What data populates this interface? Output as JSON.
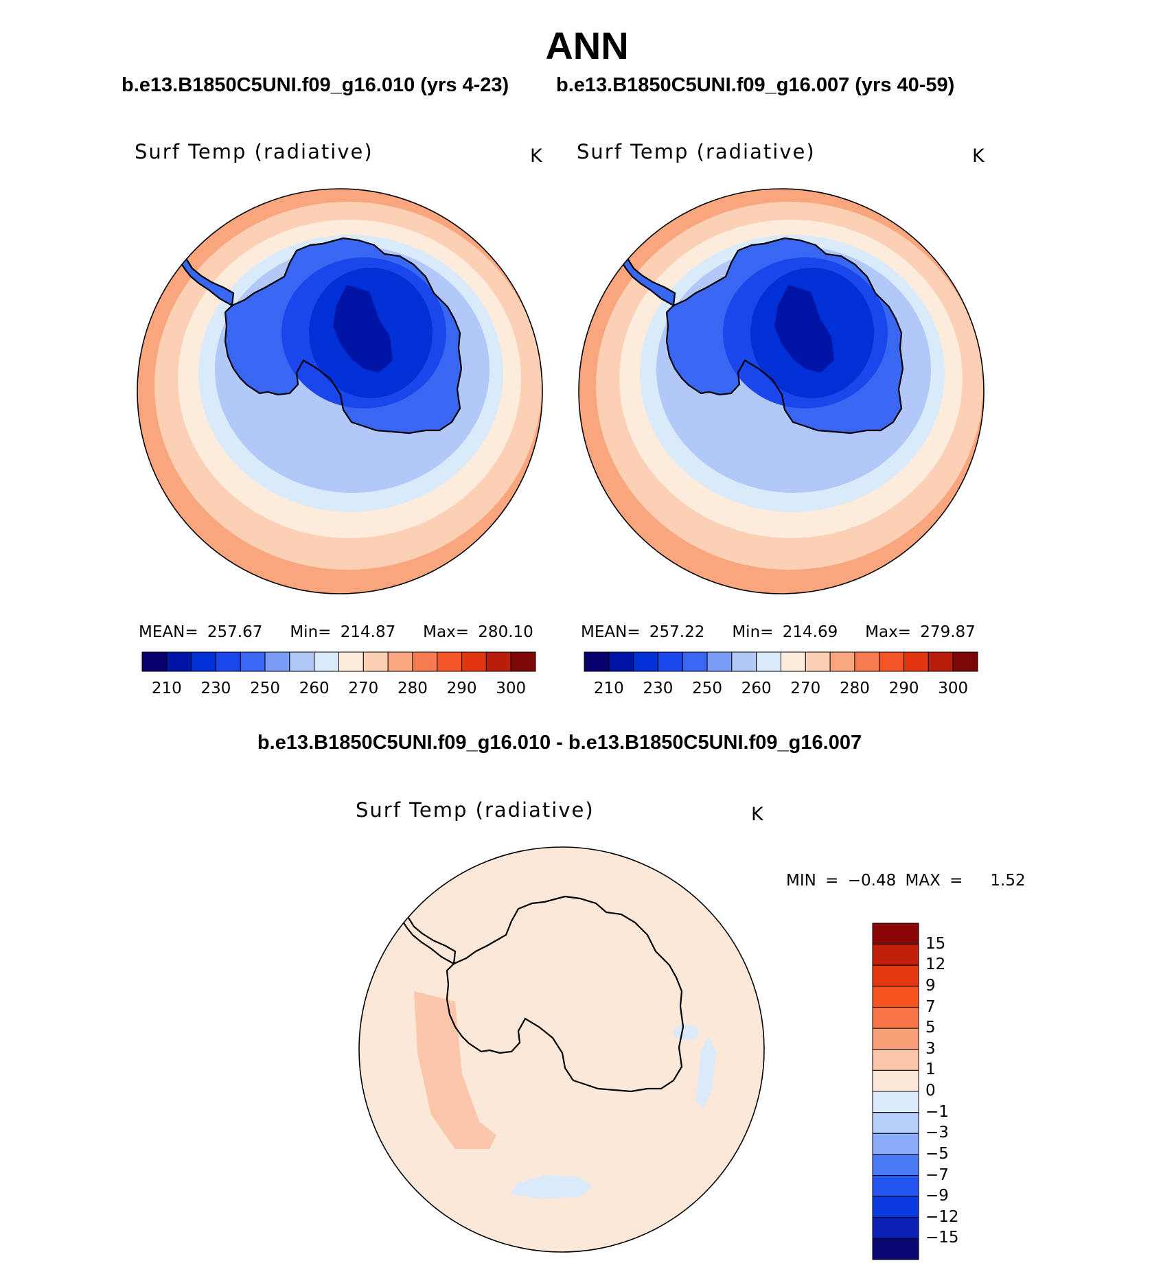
{
  "figure": {
    "title": "ANN",
    "case_left": "b.e13.B1850C5UNI.f09_g16.010 (yrs 4-23)",
    "case_right": "b.e13.B1850C5UNI.f09_g16.007 (yrs 40-59)",
    "diff_title": "b.e13.B1850C5UNI.f09_g16.010 - b.e13.B1850C5UNI.f09_g16.007"
  },
  "panels": {
    "left": {
      "variable": "Surf Temp (radiative)",
      "units": "K",
      "mean_label": "MEAN=",
      "mean": "257.67",
      "min_label": "Min=",
      "min": "214.87",
      "max_label": "Max=",
      "max": "280.10"
    },
    "right": {
      "variable": "Surf Temp (radiative)",
      "units": "K",
      "mean_label": "MEAN=",
      "mean": "257.22",
      "min_label": "Min=",
      "min": "214.69",
      "max_label": "Max=",
      "max": "279.87"
    },
    "diff": {
      "variable": "Surf Temp (radiative)",
      "units": "K",
      "min_label": "MIN =",
      "min": "−0.48",
      "max_label": "MAX =",
      "max": "1.52"
    }
  },
  "colorbar_main": {
    "colors": [
      "#08006b",
      "#0015a6",
      "#0030d6",
      "#1a47ec",
      "#3a67f2",
      "#7b9cf6",
      "#b2c8f8",
      "#d9ebfb",
      "#fdebdc",
      "#fcd0b4",
      "#f9a57d",
      "#f77b4f",
      "#f55527",
      "#e23512",
      "#b81d0c",
      "#7d0707"
    ],
    "tick_labels": [
      "210",
      "230",
      "250",
      "260",
      "270",
      "280",
      "290",
      "300"
    ]
  },
  "colorbar_diff": {
    "colors": [
      "#070672",
      "#0c1fb4",
      "#0b3be0",
      "#2356f0",
      "#4a7af3",
      "#8bacf8",
      "#b6cff9",
      "#dbeafb",
      "#fce8d9",
      "#fbc6a9",
      "#f8a078",
      "#f77546",
      "#f6531f",
      "#e3380f",
      "#c02009",
      "#8a0606"
    ],
    "tick_labels": [
      "−15",
      "−12",
      "−9",
      "−7",
      "−5",
      "−3",
      "−1",
      "0",
      "1",
      "3",
      "5",
      "7",
      "9",
      "12",
      "15"
    ]
  },
  "map_colors": {
    "ocean_band_1": "#f9a57d",
    "ocean_band_2": "#fcd0b4",
    "ocean_band_3": "#fdebdc",
    "ice_band_1": "#d9ebfb",
    "ice_band_2": "#b2c8f8",
    "ice_band_3": "#7b9cf6",
    "land_1": "#3a67f2",
    "land_2": "#1a47ec",
    "land_3": "#0030d6",
    "land_4": "#0015a6",
    "diff_background": "#fce8d9",
    "diff_warm": "#fbc6a9",
    "diff_cool": "#dbeafb"
  }
}
